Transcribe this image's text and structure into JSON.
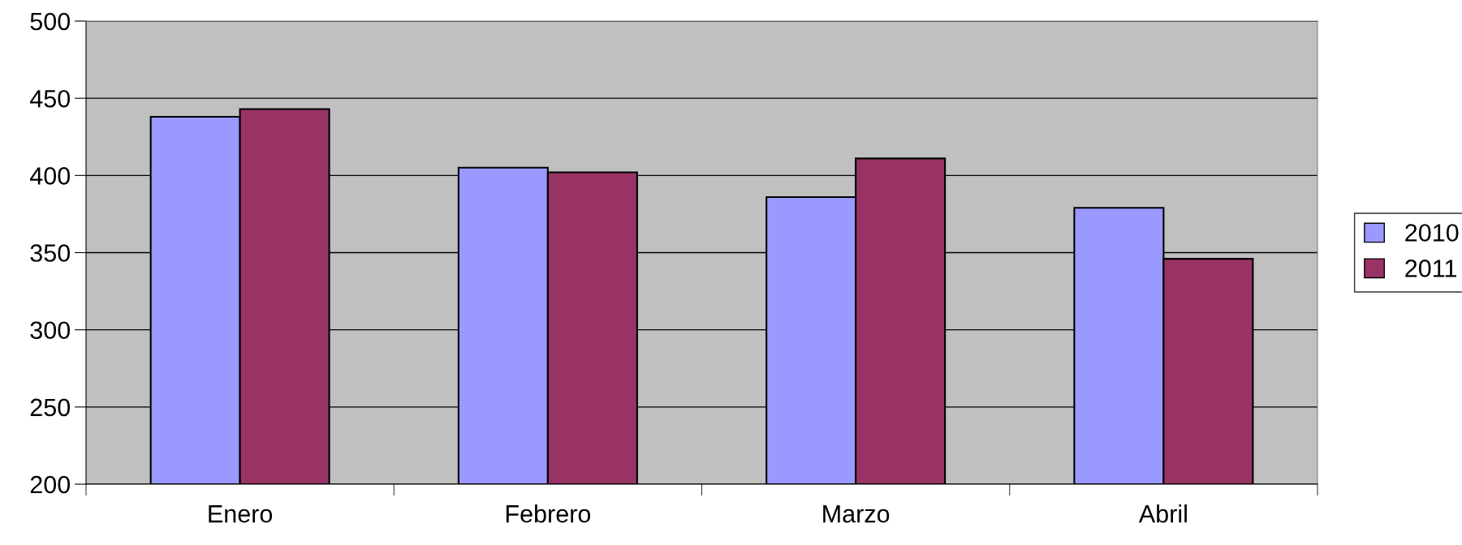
{
  "chart_data": {
    "type": "bar",
    "categories": [
      "Enero",
      "Febrero",
      "Marzo",
      "Abril"
    ],
    "series": [
      {
        "name": "2010",
        "color": "#9999ff",
        "values": [
          438,
          405,
          386,
          379
        ]
      },
      {
        "name": "2011",
        "color": "#993366",
        "values": [
          443,
          402,
          411,
          346
        ]
      }
    ],
    "ylim": [
      200,
      500
    ],
    "yticks": [
      200,
      250,
      300,
      350,
      400,
      450,
      500
    ],
    "grid": "y",
    "legend": "right"
  }
}
